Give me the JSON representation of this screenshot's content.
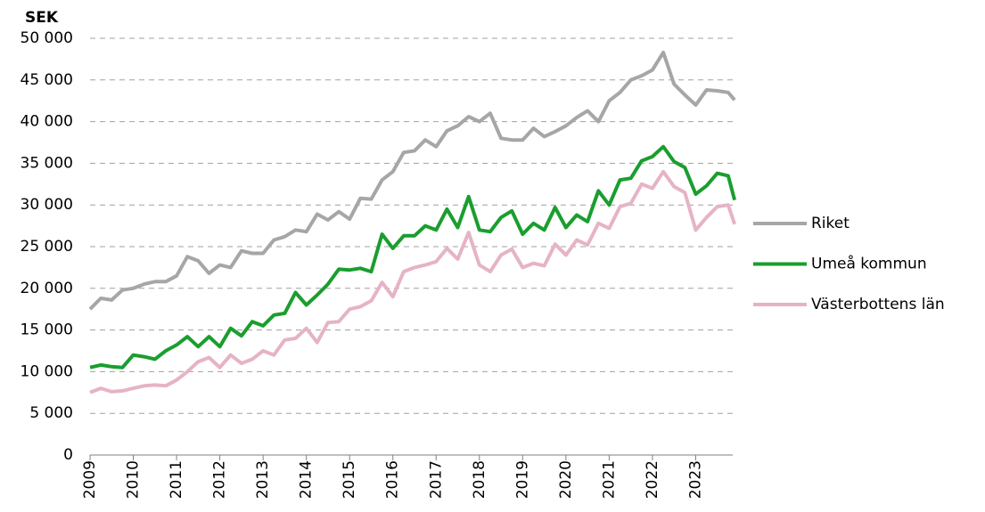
{
  "chart_data": {
    "type": "line",
    "y_label": "SEK",
    "x": [
      2009,
      2009.25,
      2009.5,
      2009.75,
      2010,
      2010.25,
      2010.5,
      2010.75,
      2011,
      2011.25,
      2011.5,
      2011.75,
      2012,
      2012.25,
      2012.5,
      2012.75,
      2013,
      2013.25,
      2013.5,
      2013.75,
      2014,
      2014.25,
      2014.5,
      2014.75,
      2015,
      2015.25,
      2015.5,
      2015.75,
      2016,
      2016.25,
      2016.5,
      2016.75,
      2017,
      2017.25,
      2017.5,
      2017.75,
      2018,
      2018.25,
      2018.5,
      2018.75,
      2019,
      2019.25,
      2019.5,
      2019.75,
      2020,
      2020.25,
      2020.5,
      2020.75,
      2021,
      2021.25,
      2021.5,
      2021.75,
      2022,
      2022.25,
      2022.5,
      2022.75,
      2023,
      2023.25,
      2023.5,
      2023.75,
      2023.9
    ],
    "series": [
      {
        "name": "Riket",
        "color": "#a6a6a6",
        "values": [
          17500,
          18800,
          18600,
          19800,
          20000,
          20500,
          20800,
          20800,
          21500,
          23800,
          23300,
          21800,
          22800,
          22500,
          24500,
          24200,
          24200,
          25800,
          26200,
          27000,
          26800,
          28900,
          28200,
          29200,
          28300,
          30800,
          30700,
          33000,
          34000,
          36300,
          36500,
          37800,
          37000,
          38900,
          39500,
          40600,
          40000,
          41000,
          38000,
          37800,
          37800,
          39200,
          38200,
          38800,
          39500,
          40500,
          41300,
          40000,
          42500,
          43500,
          45000,
          45500,
          46200,
          48300,
          44500,
          43200,
          42000,
          43800,
          43700,
          43500,
          42600
        ]
      },
      {
        "name": "Umeå kommun",
        "color": "#1a9e2e",
        "values": [
          10500,
          10800,
          10600,
          10500,
          12000,
          11800,
          11500,
          12500,
          13200,
          14200,
          13000,
          14200,
          13000,
          15200,
          14300,
          16000,
          15500,
          16800,
          17000,
          19500,
          18000,
          19200,
          20500,
          22300,
          22200,
          22400,
          22000,
          26500,
          24800,
          26300,
          26300,
          27500,
          27000,
          29500,
          27300,
          31000,
          27000,
          26800,
          28500,
          29300,
          26500,
          27800,
          27000,
          29700,
          27300,
          28800,
          28000,
          31700,
          30000,
          33000,
          33200,
          35300,
          35800,
          37000,
          35200,
          34500,
          31300,
          32300,
          33800,
          33500,
          30600
        ]
      },
      {
        "name": "Västerbottens län",
        "color": "#e6b3c6",
        "values": [
          7500,
          8000,
          7600,
          7700,
          8000,
          8300,
          8400,
          8300,
          9000,
          10000,
          11200,
          11700,
          10500,
          12000,
          11000,
          11500,
          12500,
          12000,
          13800,
          14000,
          15200,
          13500,
          15900,
          16000,
          17500,
          17800,
          18500,
          20700,
          19000,
          22000,
          22500,
          22800,
          23200,
          24800,
          23500,
          26700,
          22800,
          22000,
          24000,
          24700,
          22500,
          23000,
          22700,
          25300,
          24000,
          25800,
          25200,
          27800,
          27200,
          29800,
          30200,
          32500,
          32000,
          34000,
          32200,
          31500,
          27000,
          28500,
          29800,
          30000,
          27700
        ]
      }
    ],
    "xlim": [
      2009,
      2024
    ],
    "xticks": [
      2009,
      2010,
      2011,
      2012,
      2013,
      2014,
      2015,
      2016,
      2017,
      2018,
      2019,
      2020,
      2021,
      2022,
      2023
    ],
    "ylim": [
      0,
      50000
    ],
    "yticks": [
      0,
      {
        "value": 5000,
        "label": "5 000"
      },
      {
        "value": 10000,
        "label": "10 000"
      },
      {
        "value": 15000,
        "label": "15 000"
      },
      {
        "value": 20000,
        "label": "20 000"
      },
      {
        "value": 25000,
        "label": "25 000"
      },
      {
        "value": 30000,
        "label": "30 000"
      },
      {
        "value": 35000,
        "label": "35 000"
      },
      {
        "value": 40000,
        "label": "40 000"
      },
      {
        "value": 45000,
        "label": "45 000"
      },
      {
        "value": 50000,
        "label": "50 000"
      }
    ],
    "grid": true,
    "legend": "right"
  }
}
